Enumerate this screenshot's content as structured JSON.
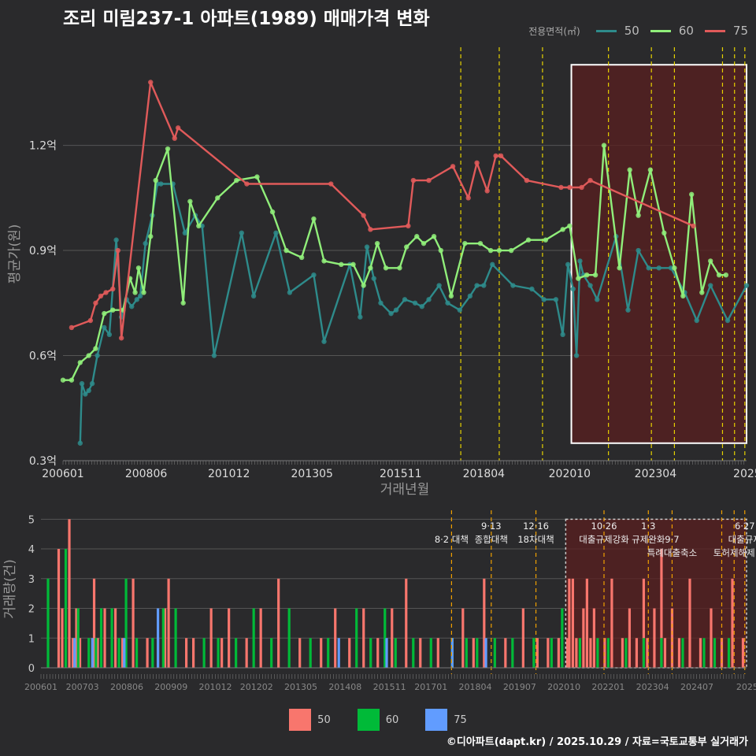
{
  "title": "조리 미림237-1 아파트(1989) 매매가격 변화",
  "legend": {
    "title": "전용면적(㎡)",
    "items": [
      {
        "label": "50",
        "color": "#2e8b8b"
      },
      {
        "label": "60",
        "color": "#90ee7a"
      },
      {
        "label": "75",
        "color": "#e05a5a"
      }
    ]
  },
  "bottom_legend": {
    "items": [
      {
        "label": "50",
        "color": "#f8766d"
      },
      {
        "label": "60",
        "color": "#00ba38"
      },
      {
        "label": "75",
        "color": "#619cff"
      }
    ]
  },
  "credit": "©디아파트(dapt.kr) / 2025.10.29 / 자료=국토교통부 실거래가",
  "chart_data": [
    {
      "type": "line",
      "title": "조리 미림237-1 아파트(1989) 매매가격 변화",
      "xlabel": "거래년월",
      "ylabel": "평균가(원)",
      "xlim": [
        2006.0,
        2025.9
      ],
      "ylim": [
        0.3,
        1.48
      ],
      "x_tick_values": [
        2006.0,
        2008.42,
        2010.83,
        2013.25,
        2015.83,
        2018.25,
        2020.75,
        2023.25,
        2025.92
      ],
      "x_tick_labels": [
        "200601",
        "200806",
        "201012",
        "201305",
        "201511",
        "201804",
        "202010",
        "202304",
        "2025"
      ],
      "y_tick_values": [
        0.3,
        0.6,
        0.9,
        1.2
      ],
      "y_tick_labels": [
        "0.3억",
        "0.6억",
        "0.9억",
        "1.2억"
      ],
      "policy_dates": [
        2017.58,
        2018.7,
        2019.96,
        2021.88,
        2023.13,
        2023.8,
        2025.2,
        2025.55,
        2025.85
      ],
      "highlight_range": [
        2020.8,
        2025.9
      ],
      "highlight_y": [
        0.35,
        1.43
      ],
      "series": [
        {
          "name": "50",
          "color": "#2e8b8b",
          "x": [
            2006.5,
            2006.55,
            2006.65,
            2006.75,
            2006.85,
            2007.0,
            2007.2,
            2007.35,
            2007.55,
            2007.7,
            2007.85,
            2008.0,
            2008.15,
            2008.25,
            2008.4,
            2008.6,
            2008.75,
            2008.85,
            2009.2,
            2009.55,
            2009.85,
            2010.05,
            2010.4,
            2011.2,
            2011.55,
            2012.2,
            2012.6,
            2013.3,
            2013.6,
            2014.35,
            2014.65,
            2014.85,
            2015.05,
            2015.25,
            2015.55,
            2015.7,
            2015.95,
            2016.25,
            2016.45,
            2016.65,
            2016.95,
            2017.2,
            2017.55,
            2017.85,
            2018.05,
            2018.25,
            2018.5,
            2019.1,
            2019.65,
            2020.0,
            2020.35,
            2020.55,
            2020.7,
            2020.85,
            2020.95,
            2021.05,
            2021.15,
            2021.35,
            2021.55,
            2022.1,
            2022.45,
            2022.75,
            2023.05,
            2023.35,
            2023.7,
            2024.1,
            2024.45,
            2024.85,
            2025.35,
            2025.9
          ],
          "y": [
            0.35,
            0.52,
            0.49,
            0.5,
            0.52,
            0.6,
            0.68,
            0.66,
            0.93,
            0.71,
            0.76,
            0.74,
            0.76,
            0.77,
            0.92,
            1.0,
            1.09,
            1.09,
            1.09,
            0.95,
            1.0,
            0.97,
            0.6,
            0.95,
            0.77,
            0.95,
            0.78,
            0.83,
            0.64,
            0.86,
            0.71,
            0.91,
            0.82,
            0.75,
            0.72,
            0.73,
            0.76,
            0.75,
            0.74,
            0.76,
            0.8,
            0.75,
            0.73,
            0.77,
            0.8,
            0.8,
            0.86,
            0.8,
            0.79,
            0.76,
            0.76,
            0.66,
            0.86,
            0.79,
            0.6,
            0.87,
            0.83,
            0.8,
            0.76,
            0.94,
            0.73,
            0.9,
            0.85,
            0.85,
            0.85,
            0.78,
            0.7,
            0.8,
            0.7,
            0.8
          ]
        },
        {
          "name": "60",
          "color": "#90ee7a",
          "x": [
            2006.0,
            2006.25,
            2006.5,
            2006.75,
            2006.95,
            2007.2,
            2007.45,
            2007.75,
            2007.95,
            2008.1,
            2008.2,
            2008.35,
            2008.55,
            2008.7,
            2009.05,
            2009.5,
            2009.7,
            2009.95,
            2010.5,
            2011.05,
            2011.65,
            2012.1,
            2012.5,
            2012.95,
            2013.3,
            2013.6,
            2014.1,
            2014.45,
            2014.75,
            2014.95,
            2015.15,
            2015.4,
            2015.8,
            2016.0,
            2016.3,
            2016.5,
            2016.8,
            2017.0,
            2017.3,
            2017.7,
            2018.15,
            2018.45,
            2018.7,
            2019.05,
            2019.55,
            2020.05,
            2020.55,
            2020.75,
            2021.0,
            2021.25,
            2021.5,
            2021.75,
            2022.2,
            2022.5,
            2022.75,
            2023.1,
            2023.5,
            2023.8,
            2024.05,
            2024.3,
            2024.6,
            2024.85,
            2025.1,
            2025.3
          ],
          "y": [
            0.53,
            0.53,
            0.58,
            0.6,
            0.62,
            0.72,
            0.73,
            0.73,
            0.82,
            0.78,
            0.85,
            0.78,
            0.94,
            1.1,
            1.19,
            0.75,
            1.04,
            0.97,
            1.05,
            1.1,
            1.11,
            1.01,
            0.9,
            0.88,
            0.99,
            0.87,
            0.86,
            0.86,
            0.8,
            0.85,
            0.92,
            0.85,
            0.85,
            0.91,
            0.94,
            0.92,
            0.94,
            0.9,
            0.77,
            0.92,
            0.92,
            0.9,
            0.9,
            0.9,
            0.93,
            0.93,
            0.96,
            0.97,
            0.82,
            0.83,
            0.83,
            1.2,
            0.85,
            1.13,
            1.0,
            1.13,
            0.95,
            0.85,
            0.77,
            1.06,
            0.78,
            0.87,
            0.83,
            0.83
          ]
        },
        {
          "name": "75",
          "color": "#e05a5a",
          "x": [
            2006.25,
            2006.8,
            2006.95,
            2007.1,
            2007.25,
            2007.45,
            2007.6,
            2007.7,
            2008.55,
            2009.25,
            2009.35,
            2011.35,
            2013.8,
            2014.75,
            2014.95,
            2016.05,
            2016.2,
            2016.65,
            2017.35,
            2017.8,
            2018.05,
            2018.35,
            2018.6,
            2018.75,
            2019.5,
            2020.5,
            2020.75,
            2021.1,
            2021.35,
            2024.35
          ],
          "y": [
            0.68,
            0.7,
            0.75,
            0.77,
            0.78,
            0.79,
            0.9,
            0.65,
            1.38,
            1.22,
            1.25,
            1.09,
            1.09,
            1.0,
            0.96,
            0.97,
            1.1,
            1.1,
            1.14,
            1.05,
            1.15,
            1.07,
            1.17,
            1.17,
            1.1,
            1.08,
            1.08,
            1.08,
            1.1,
            0.97
          ]
        }
      ]
    },
    {
      "type": "bar",
      "xlabel": "",
      "ylabel": "거래량(건)",
      "xlim": [
        2006.0,
        2025.9
      ],
      "ylim": [
        0,
        5.3
      ],
      "y_tick_values": [
        0,
        1,
        2,
        3,
        4,
        5
      ],
      "y_tick_labels": [
        "0",
        "1",
        "2",
        "3",
        "4",
        "5"
      ],
      "x_tick_values": [
        2006.0,
        2007.17,
        2008.42,
        2009.67,
        2010.92,
        2012.08,
        2013.33,
        2014.58,
        2015.83,
        2017.0,
        2018.25,
        2019.5,
        2020.75,
        2022.0,
        2023.25,
        2024.5,
        2025.92
      ],
      "x_tick_labels": [
        "200601",
        "200703",
        "200806",
        "200909",
        "201012",
        "201202",
        "201305",
        "201408",
        "201511",
        "201701",
        "201804",
        "201907",
        "202010",
        "202201",
        "202304",
        "202407",
        "2025"
      ],
      "policy_dates": [
        2017.58,
        2018.7,
        2019.96,
        2021.88,
        2023.13,
        2023.8,
        2025.2,
        2025.55,
        2025.85
      ],
      "highlight_range": [
        2020.8,
        2025.9
      ],
      "annotations": [
        {
          "x": 2017.58,
          "row": 1,
          "text": "8·2 대책"
        },
        {
          "x": 2018.7,
          "row": 0,
          "text": "9·13"
        },
        {
          "x": 2018.7,
          "row": 1,
          "text": "종합대책"
        },
        {
          "x": 2019.96,
          "row": 0,
          "text": "12·16"
        },
        {
          "x": 2019.96,
          "row": 1,
          "text": "18차대책"
        },
        {
          "x": 2021.88,
          "row": 0,
          "text": "10·26"
        },
        {
          "x": 2021.88,
          "row": 1,
          "text": "대출규제강화"
        },
        {
          "x": 2023.13,
          "row": 0,
          "text": "1·3"
        },
        {
          "x": 2023.13,
          "row": 1,
          "text": "규제완화"
        },
        {
          "x": 2023.8,
          "row": 1,
          "text": "9·7"
        },
        {
          "x": 2023.8,
          "row": 2,
          "text": "특례대출축소"
        },
        {
          "x": 2025.55,
          "row": 2,
          "text": "토허제해제"
        },
        {
          "x": 2025.85,
          "row": 0,
          "text": "6·27"
        },
        {
          "x": 2025.85,
          "row": 1,
          "text": "대출규제"
        }
      ],
      "series": [
        {
          "name": "50",
          "color": "#f8766d",
          "x": [
            2006.5,
            2006.6,
            2006.8,
            2006.9,
            2007.0,
            2007.1,
            2007.5,
            2007.6,
            2007.8,
            2008.1,
            2008.3,
            2008.6,
            2009.0,
            2009.3,
            2009.5,
            2009.6,
            2010.1,
            2010.3,
            2010.8,
            2011.1,
            2011.3,
            2011.8,
            2012.2,
            2012.7,
            2013.3,
            2013.9,
            2014.3,
            2014.7,
            2015.1,
            2015.5,
            2015.9,
            2016.3,
            2016.7,
            2017.2,
            2017.9,
            2018.2,
            2018.5,
            2019.1,
            2019.6,
            2020.0,
            2020.3,
            2020.6,
            2020.85,
            2020.9,
            2021.0,
            2021.1,
            2021.3,
            2021.4,
            2021.5,
            2021.6,
            2021.9,
            2022.1,
            2022.4,
            2022.6,
            2022.8,
            2023.0,
            2023.1,
            2023.3,
            2023.5,
            2023.6,
            2023.8,
            2024.0,
            2024.3,
            2024.6,
            2024.9,
            2025.2,
            2025.5,
            2025.8
          ],
          "y": [
            4,
            2,
            5,
            1,
            2,
            1,
            3,
            1,
            2,
            2,
            1,
            3,
            1,
            1,
            2,
            3,
            1,
            1,
            2,
            1,
            2,
            1,
            2,
            3,
            1,
            1,
            2,
            1,
            2,
            1,
            2,
            3,
            1,
            1,
            2,
            1,
            3,
            1,
            2,
            1,
            1,
            1,
            1,
            3,
            3,
            1,
            2,
            3,
            1,
            2,
            1,
            3,
            1,
            2,
            1,
            3,
            1,
            2,
            4,
            1,
            2,
            1,
            3,
            1,
            2,
            1,
            3,
            1
          ]
        },
        {
          "name": "60",
          "color": "#00ba38",
          "x": [
            2006.2,
            2006.7,
            2007.05,
            2007.35,
            2007.55,
            2007.7,
            2008.0,
            2008.2,
            2008.4,
            2008.7,
            2009.15,
            2009.45,
            2009.8,
            2010.6,
            2011.0,
            2011.5,
            2012.0,
            2012.5,
            2013.0,
            2013.6,
            2014.1,
            2014.9,
            2015.3,
            2015.7,
            2016.0,
            2016.5,
            2017.0,
            2017.6,
            2018.0,
            2018.3,
            2018.8,
            2019.3,
            2019.9,
            2020.4,
            2020.7,
            2021.2,
            2021.7,
            2022.0,
            2022.5,
            2023.0,
            2023.5,
            2024.1,
            2024.7,
            2025.0,
            2025.4
          ],
          "y": [
            3,
            4,
            2,
            1,
            1,
            2,
            2,
            1,
            3,
            1,
            1,
            2,
            2,
            1,
            1,
            1,
            2,
            1,
            2,
            1,
            1,
            2,
            1,
            2,
            1,
            1,
            1,
            1,
            1,
            1,
            1,
            1,
            1,
            1,
            2,
            1,
            1,
            1,
            1,
            1,
            1,
            1,
            1,
            1,
            1
          ]
        },
        {
          "name": "75",
          "color": "#619cff",
          "x": [
            2006.95,
            2007.45,
            2008.35,
            2009.3,
            2014.4,
            2015.75,
            2017.6,
            2018.55
          ],
          "y": [
            1,
            1,
            1,
            2,
            1,
            1,
            1,
            1
          ]
        }
      ]
    }
  ]
}
